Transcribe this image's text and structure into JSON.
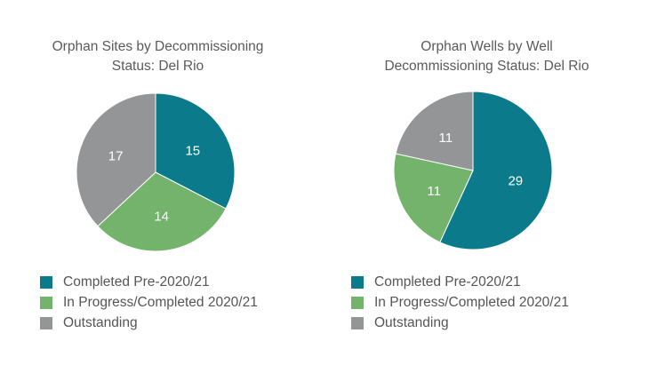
{
  "chart_data": [
    {
      "type": "pie",
      "title": [
        "Orphan Sites by Decommissioning",
        "Status: Del Rio"
      ],
      "categories": [
        "Completed Pre-2020/21",
        "In Progress/Completed 2020/21",
        "Outstanding"
      ],
      "values": [
        15,
        14,
        17
      ],
      "colors": [
        "#0b7b8b",
        "#74b36b",
        "#939597"
      ],
      "legend": "bottom-left"
    },
    {
      "type": "pie",
      "title": [
        "Orphan Wells by Well",
        "Decommissioning Status: Del Rio"
      ],
      "categories": [
        "Completed Pre-2020/21",
        "In Progress/Completed 2020/21",
        "Outstanding"
      ],
      "values": [
        29,
        11,
        11
      ],
      "colors": [
        "#0b7b8b",
        "#74b36b",
        "#939597"
      ],
      "legend": "bottom-left"
    }
  ]
}
